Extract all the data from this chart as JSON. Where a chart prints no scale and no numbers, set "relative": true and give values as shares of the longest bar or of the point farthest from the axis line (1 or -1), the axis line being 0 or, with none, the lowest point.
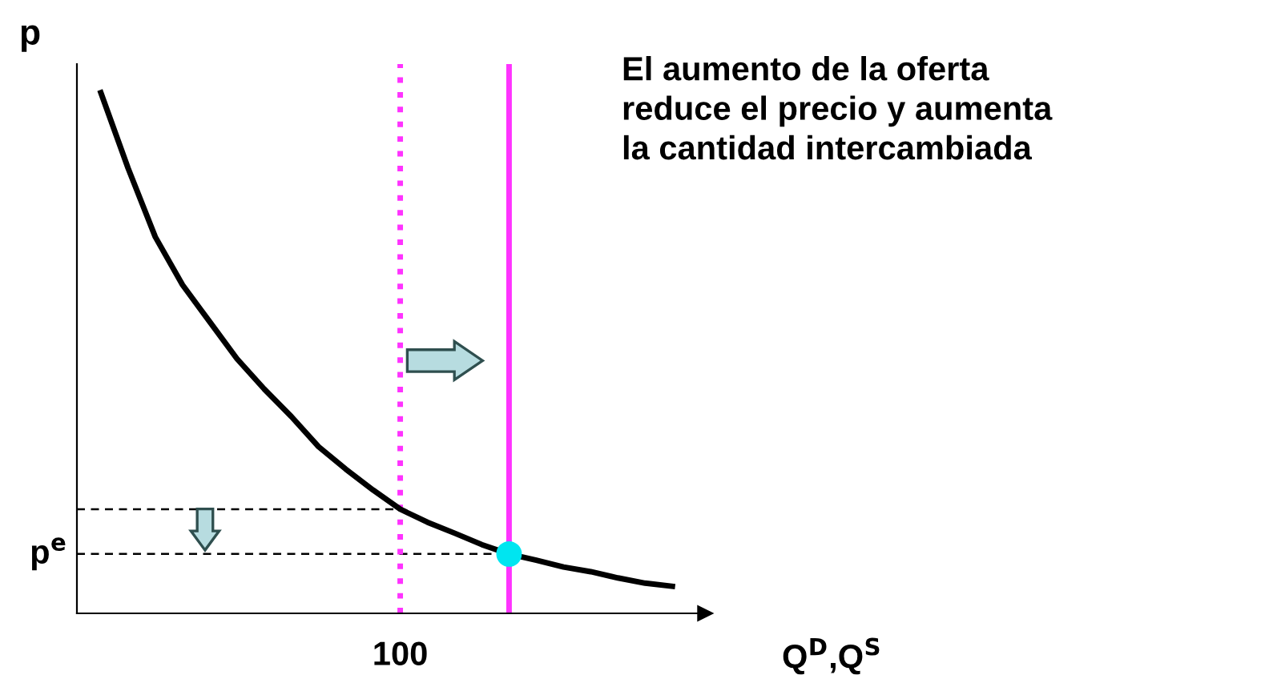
{
  "chart_data": {
    "type": "line",
    "relative": true,
    "ylabel": "p",
    "xlabel": "Q$^{D}$,Q$^{S}$",
    "annotations": [
      "El aumento de la oferta\nreduce el precio y aumenta\nla cantidad intercambiada",
      "100"
    ],
    "categories": [
      null,
      null,
      null,
      null,
      null,
      null,
      null,
      null,
      null,
      null,
      null,
      null,
      null,
      null,
      null,
      null,
      null,
      null,
      null,
      null,
      null,
      null
    ],
    "series": [
      {
        "color": "#000000",
        "values": [
          1,
          0.855,
          0.723,
          0.631,
          0.56,
          0.489,
          0.431,
          0.378,
          0.32,
          0.277,
          0.237,
          0.2,
          0.175,
          0.154,
          0.132,
          0.114,
          0.102,
          0.089,
          0.08,
          0.068,
          0.058,
          0.052
        ]
      }
    ],
    "ref_lines": [
      {
        "axis": "y",
        "value": 0.2,
        "color": "#000000",
        "line_style": "dashed"
      },
      {
        "axis": "y",
        "value": 0.114,
        "color": "#000000",
        "line_style": "dashed",
        "label": "p$^{e}$"
      }
    ]
  }
}
